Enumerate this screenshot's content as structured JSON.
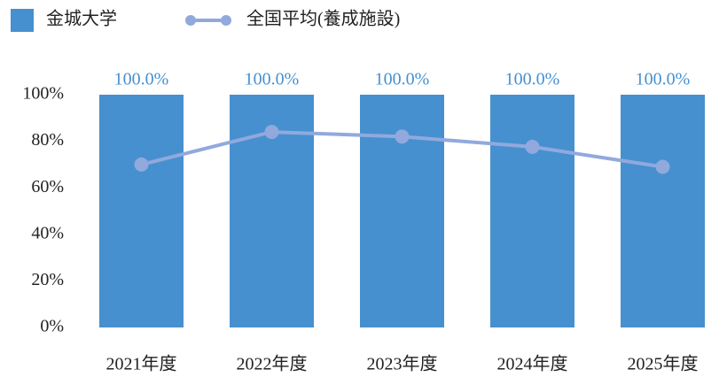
{
  "chart_data": {
    "type": "bar_line",
    "categories": [
      "2021年度",
      "2022年度",
      "2023年度",
      "2024年度",
      "2025年度"
    ],
    "series": [
      {
        "name": "金城大学",
        "type": "bar",
        "color": "#4690cf",
        "values": [
          100,
          100,
          100,
          100,
          100
        ],
        "value_labels": [
          "100.0%",
          "100.0%",
          "100.0%",
          "100.0%",
          "100.0%"
        ]
      },
      {
        "name": "全国平均(養成施設)",
        "type": "line",
        "color": "#91a9dd",
        "values": [
          70,
          84,
          82,
          77.6,
          69
        ]
      }
    ],
    "ylim": [
      0,
      100
    ],
    "yticks": [
      {
        "value": 0,
        "label": "0%"
      },
      {
        "value": 20,
        "label": "20%"
      },
      {
        "value": 40,
        "label": "40%"
      },
      {
        "value": 60,
        "label": "60%"
      },
      {
        "value": 80,
        "label": "80%"
      },
      {
        "value": 100,
        "label": "100%"
      }
    ],
    "grid": false
  }
}
